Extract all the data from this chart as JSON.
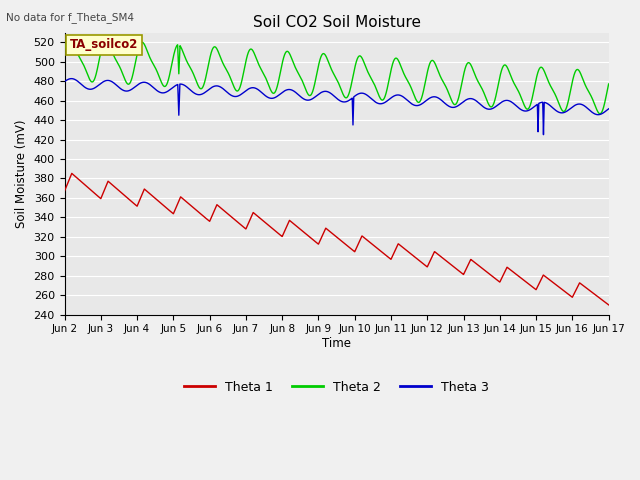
{
  "title": "Soil CO2 Soil Moisture",
  "top_left_text": "No data for f_Theta_SM4",
  "annotation_text": "TA_soilco2",
  "ylabel": "Soil Moisture (mV)",
  "xlabel": "Time",
  "ylim": [
    240,
    530
  ],
  "yticks": [
    240,
    260,
    280,
    300,
    320,
    340,
    360,
    380,
    400,
    420,
    440,
    460,
    480,
    500,
    520
  ],
  "x_tick_labels": [
    "Jun 2",
    "Jun 3",
    "Jun 4",
    "Jun 5",
    "Jun 6",
    "Jun 7",
    "Jun 8",
    "Jun 9",
    "Jun 10",
    "Jun 11",
    "Jun 12",
    "Jun 13",
    "Jun 14",
    "Jun 15",
    "Jun 16",
    "Jun 17"
  ],
  "bg_color": "#e8e8e8",
  "fig_bg_color": "#f0f0f0",
  "grid_color": "#ffffff",
  "theta1_color": "#cc0000",
  "theta2_color": "#00cc00",
  "theta3_color": "#0000cc",
  "legend_labels": [
    "Theta 1",
    "Theta 2",
    "Theta 3"
  ]
}
